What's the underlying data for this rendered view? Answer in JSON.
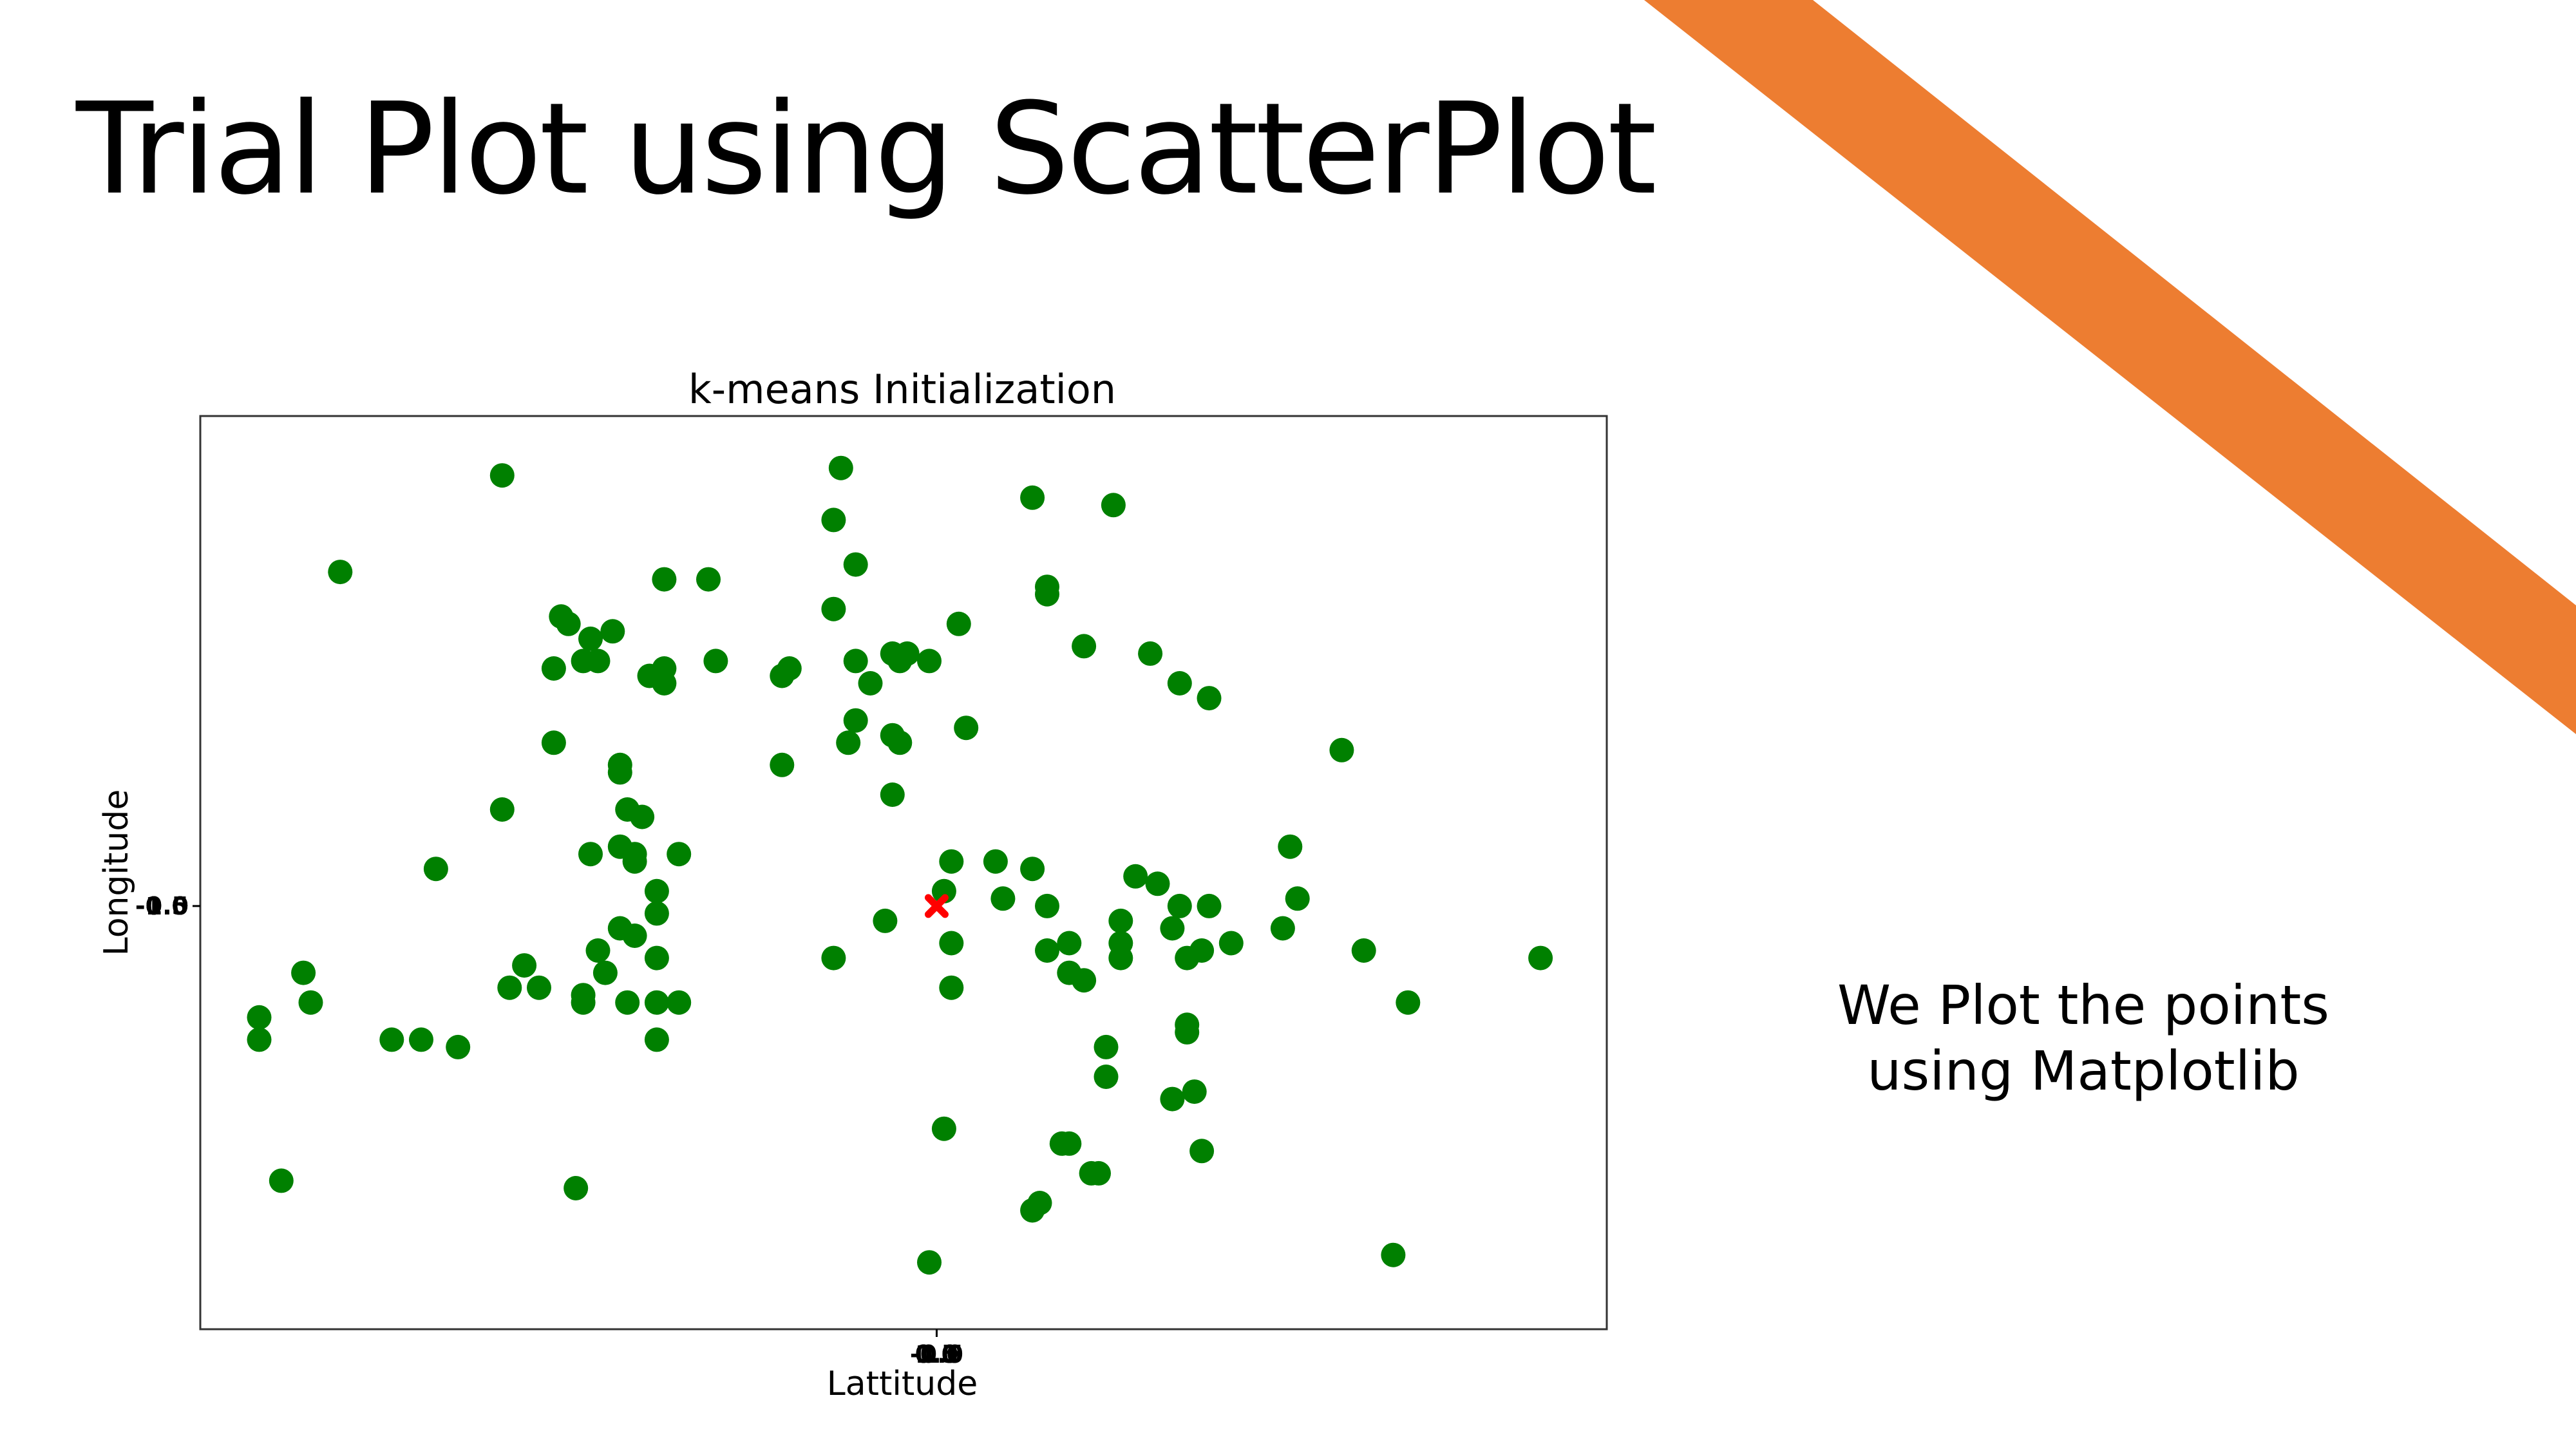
{
  "slide": {
    "title": "Trial Plot using ScatterPlot",
    "note_line1": "We Plot the points",
    "note_line2": "using Matplotlib",
    "accent_color": "#ED7D31"
  },
  "chart_data": {
    "type": "scatter",
    "title": "k-means Initialization",
    "xlabel": "Lattitude",
    "ylabel": "Longitude",
    "xlim": [
      -1.0,
      0.91
    ],
    "ylim": [
      -0.57,
      0.66
    ],
    "xticks": [
      "-1.0",
      "-0.5",
      "0.0",
      "0.5",
      "1.0"
    ],
    "yticks": [
      "-1.0",
      "-0.5",
      "0.0",
      "0.5",
      "1.0"
    ],
    "xtick_pos": 0.0,
    "ytick_pos": 0.0,
    "point_color": "#008000",
    "center_color": "#FF0000",
    "centroid": {
      "x": 0.0,
      "y": 0.0
    },
    "points": [
      {
        "x": -0.59,
        "y": 0.58
      },
      {
        "x": -0.81,
        "y": 0.45
      },
      {
        "x": -0.51,
        "y": 0.39
      },
      {
        "x": -0.5,
        "y": 0.38
      },
      {
        "x": -0.44,
        "y": 0.37
      },
      {
        "x": -0.47,
        "y": 0.36
      },
      {
        "x": -0.52,
        "y": 0.32
      },
      {
        "x": -0.48,
        "y": 0.33
      },
      {
        "x": -0.46,
        "y": 0.33
      },
      {
        "x": -0.37,
        "y": 0.44
      },
      {
        "x": -0.31,
        "y": 0.44
      },
      {
        "x": -0.37,
        "y": 0.32
      },
      {
        "x": -0.39,
        "y": 0.31
      },
      {
        "x": -0.37,
        "y": 0.3
      },
      {
        "x": -0.3,
        "y": 0.33
      },
      {
        "x": -0.52,
        "y": 0.22
      },
      {
        "x": -0.43,
        "y": 0.19
      },
      {
        "x": -0.43,
        "y": 0.18
      },
      {
        "x": -0.59,
        "y": 0.13
      },
      {
        "x": -0.42,
        "y": 0.13
      },
      {
        "x": -0.4,
        "y": 0.12
      },
      {
        "x": -0.47,
        "y": 0.07
      },
      {
        "x": -0.43,
        "y": 0.08
      },
      {
        "x": -0.41,
        "y": 0.07
      },
      {
        "x": -0.35,
        "y": 0.07
      },
      {
        "x": -0.41,
        "y": 0.06
      },
      {
        "x": -0.68,
        "y": 0.05
      },
      {
        "x": -0.38,
        "y": 0.02
      },
      {
        "x": -0.38,
        "y": -0.01
      },
      {
        "x": -0.43,
        "y": -0.03
      },
      {
        "x": -0.41,
        "y": -0.04
      },
      {
        "x": -0.46,
        "y": -0.06
      },
      {
        "x": -0.38,
        "y": -0.07
      },
      {
        "x": -0.56,
        "y": -0.08
      },
      {
        "x": -0.58,
        "y": -0.11
      },
      {
        "x": -0.54,
        "y": -0.11
      },
      {
        "x": -0.45,
        "y": -0.09
      },
      {
        "x": -0.48,
        "y": -0.12
      },
      {
        "x": -0.48,
        "y": -0.13
      },
      {
        "x": -0.42,
        "y": -0.13
      },
      {
        "x": -0.38,
        "y": -0.13
      },
      {
        "x": -0.35,
        "y": -0.13
      },
      {
        "x": -0.38,
        "y": -0.18
      },
      {
        "x": -0.86,
        "y": -0.09
      },
      {
        "x": -0.85,
        "y": -0.13
      },
      {
        "x": -0.92,
        "y": -0.15
      },
      {
        "x": -0.92,
        "y": -0.18
      },
      {
        "x": -0.74,
        "y": -0.18
      },
      {
        "x": -0.7,
        "y": -0.18
      },
      {
        "x": -0.65,
        "y": -0.19
      },
      {
        "x": -0.89,
        "y": -0.37
      },
      {
        "x": -0.49,
        "y": -0.38
      },
      {
        "x": -0.13,
        "y": 0.59
      },
      {
        "x": -0.14,
        "y": 0.52
      },
      {
        "x": -0.11,
        "y": 0.46
      },
      {
        "x": -0.14,
        "y": 0.4
      },
      {
        "x": -0.21,
        "y": 0.31
      },
      {
        "x": -0.2,
        "y": 0.32
      },
      {
        "x": -0.11,
        "y": 0.33
      },
      {
        "x": -0.09,
        "y": 0.3
      },
      {
        "x": -0.06,
        "y": 0.34
      },
      {
        "x": -0.05,
        "y": 0.33
      },
      {
        "x": -0.04,
        "y": 0.34
      },
      {
        "x": -0.01,
        "y": 0.33
      },
      {
        "x": 0.03,
        "y": 0.38
      },
      {
        "x": -0.11,
        "y": 0.25
      },
      {
        "x": -0.12,
        "y": 0.22
      },
      {
        "x": -0.06,
        "y": 0.23
      },
      {
        "x": -0.05,
        "y": 0.22
      },
      {
        "x": -0.21,
        "y": 0.19
      },
      {
        "x": 0.04,
        "y": 0.24
      },
      {
        "x": -0.06,
        "y": 0.15
      },
      {
        "x": 0.13,
        "y": 0.55
      },
      {
        "x": 0.24,
        "y": 0.54
      },
      {
        "x": 0.15,
        "y": 0.43
      },
      {
        "x": 0.15,
        "y": 0.42
      },
      {
        "x": 0.2,
        "y": 0.35
      },
      {
        "x": 0.29,
        "y": 0.34
      },
      {
        "x": 0.33,
        "y": 0.3
      },
      {
        "x": 0.37,
        "y": 0.28
      },
      {
        "x": 0.55,
        "y": 0.21
      },
      {
        "x": 0.02,
        "y": 0.06
      },
      {
        "x": 0.08,
        "y": 0.06
      },
      {
        "x": 0.13,
        "y": 0.05
      },
      {
        "x": 0.27,
        "y": 0.04
      },
      {
        "x": 0.3,
        "y": 0.03
      },
      {
        "x": 0.48,
        "y": 0.08
      },
      {
        "x": 0.49,
        "y": 0.01
      },
      {
        "x": 0.01,
        "y": 0.02
      },
      {
        "x": 0.09,
        "y": 0.01
      },
      {
        "x": -0.07,
        "y": -0.02
      },
      {
        "x": 0.15,
        "y": 0.0
      },
      {
        "x": 0.25,
        "y": -0.02
      },
      {
        "x": 0.33,
        "y": 0.0
      },
      {
        "x": 0.37,
        "y": 0.0
      },
      {
        "x": 0.32,
        "y": -0.03
      },
      {
        "x": 0.15,
        "y": -0.06
      },
      {
        "x": 0.18,
        "y": -0.05
      },
      {
        "x": 0.25,
        "y": -0.05
      },
      {
        "x": 0.25,
        "y": -0.07
      },
      {
        "x": 0.34,
        "y": -0.07
      },
      {
        "x": 0.36,
        "y": -0.06
      },
      {
        "x": 0.4,
        "y": -0.05
      },
      {
        "x": 0.47,
        "y": -0.03
      },
      {
        "x": 0.02,
        "y": -0.05
      },
      {
        "x": 0.18,
        "y": -0.09
      },
      {
        "x": 0.2,
        "y": -0.1
      },
      {
        "x": 0.58,
        "y": -0.06
      },
      {
        "x": -0.14,
        "y": -0.07
      },
      {
        "x": 0.02,
        "y": -0.11
      },
      {
        "x": 0.82,
        "y": -0.07
      },
      {
        "x": 0.64,
        "y": -0.13
      },
      {
        "x": 0.34,
        "y": -0.16
      },
      {
        "x": 0.34,
        "y": -0.17
      },
      {
        "x": 0.23,
        "y": -0.19
      },
      {
        "x": 0.23,
        "y": -0.23
      },
      {
        "x": 0.35,
        "y": -0.25
      },
      {
        "x": 0.32,
        "y": -0.26
      },
      {
        "x": 0.01,
        "y": -0.3
      },
      {
        "x": 0.17,
        "y": -0.32
      },
      {
        "x": 0.18,
        "y": -0.32
      },
      {
        "x": 0.36,
        "y": -0.33
      },
      {
        "x": 0.21,
        "y": -0.36
      },
      {
        "x": 0.22,
        "y": -0.36
      },
      {
        "x": 0.14,
        "y": -0.4
      },
      {
        "x": 0.13,
        "y": -0.41
      },
      {
        "x": 0.62,
        "y": -0.47
      },
      {
        "x": -0.01,
        "y": -0.48
      }
    ]
  }
}
